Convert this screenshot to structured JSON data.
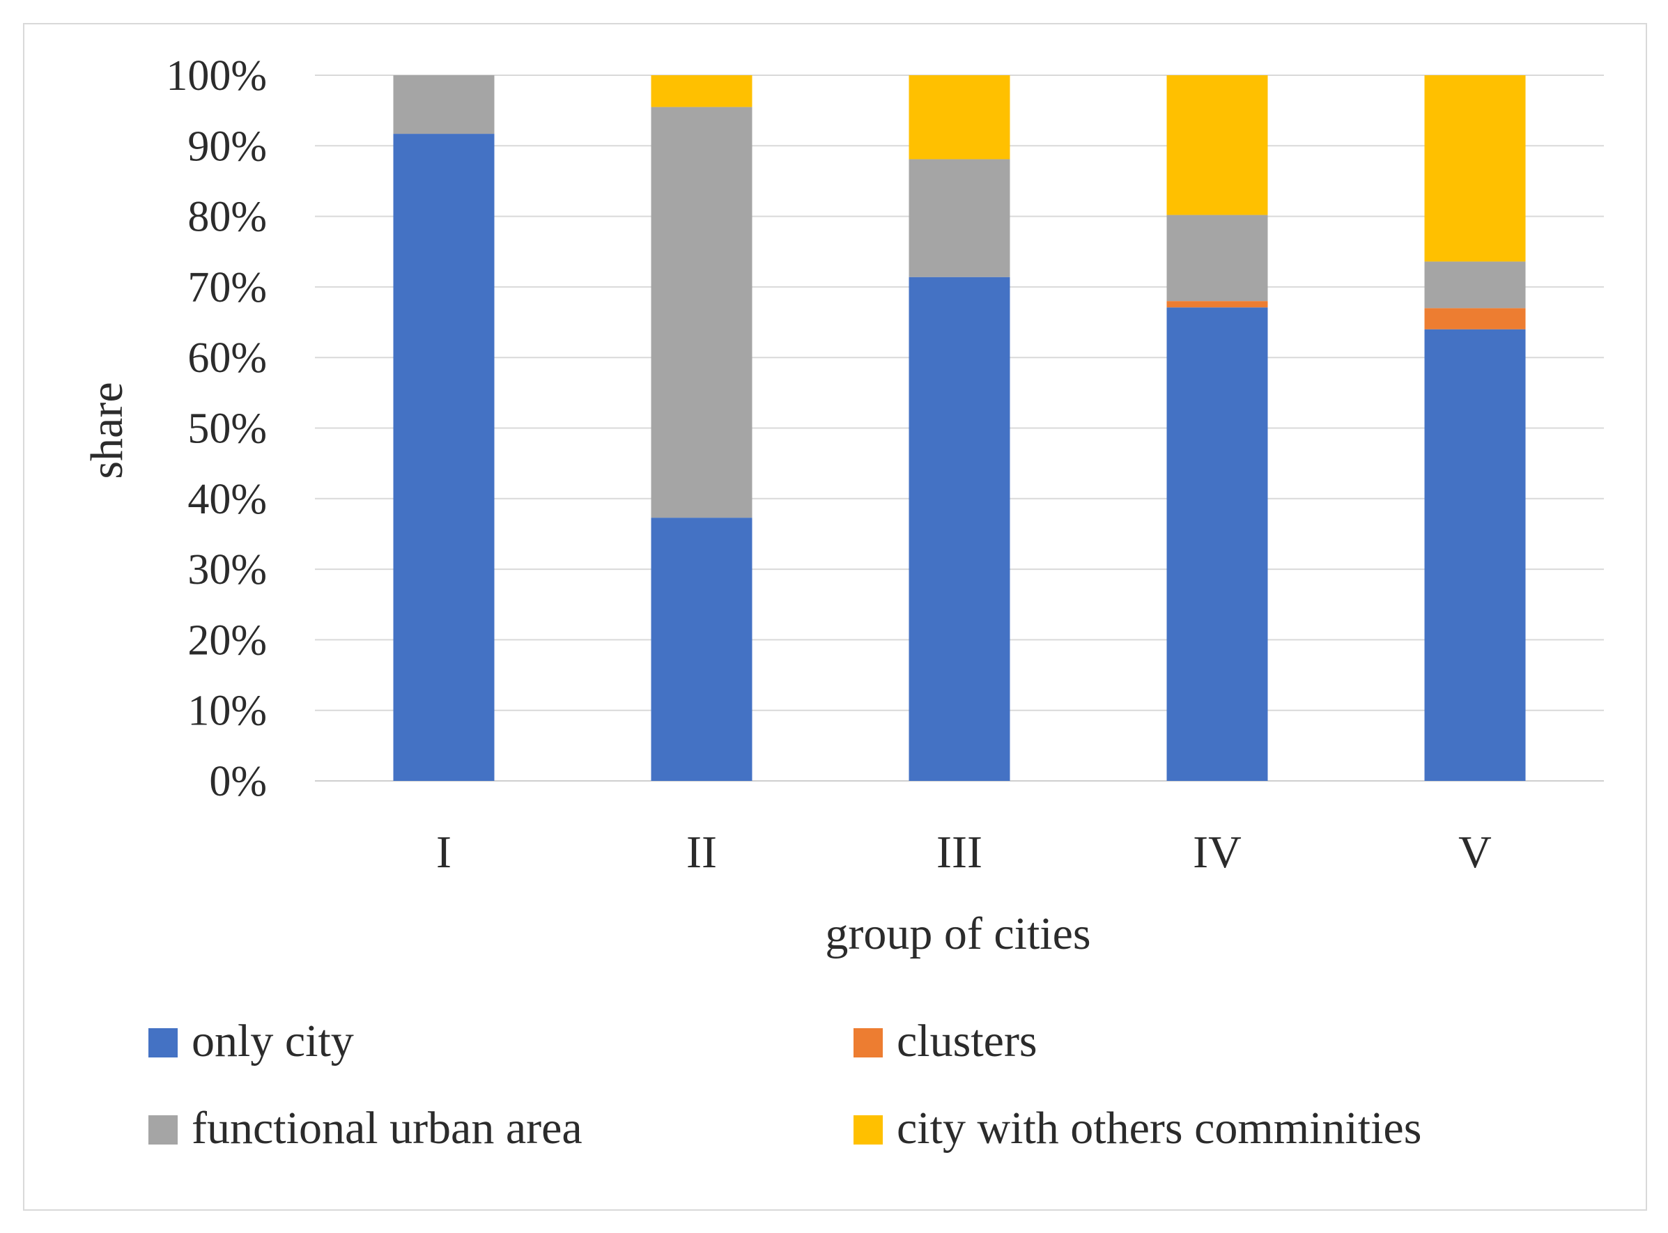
{
  "chart_data": {
    "type": "bar",
    "stacked": true,
    "percent": true,
    "title": "",
    "xlabel": "group of cities",
    "ylabel": "share",
    "categories": [
      "I",
      "II",
      "III",
      "IV",
      "V"
    ],
    "ylim": [
      0,
      100
    ],
    "yticks": [
      0,
      10,
      20,
      30,
      40,
      50,
      60,
      70,
      80,
      90,
      100
    ],
    "ytick_labels": [
      "0%",
      "10%",
      "20%",
      "30%",
      "40%",
      "50%",
      "60%",
      "70%",
      "80%",
      "90%",
      "100%"
    ],
    "grid": true,
    "legend_position": "bottom",
    "series": [
      {
        "name": "only city",
        "color": "#4472C4",
        "values": [
          91.7,
          37.3,
          71.4,
          67.1,
          64.0
        ]
      },
      {
        "name": "clusters",
        "color": "#ED7D31",
        "values": [
          0.0,
          0.0,
          0.0,
          0.9,
          3.0
        ]
      },
      {
        "name": "functional urban area",
        "color": "#A5A5A5",
        "values": [
          8.3,
          58.2,
          16.7,
          12.2,
          6.6
        ]
      },
      {
        "name": "city with others comminities",
        "color": "#FFC000",
        "values": [
          0.0,
          4.5,
          11.9,
          19.8,
          26.4
        ]
      }
    ]
  }
}
